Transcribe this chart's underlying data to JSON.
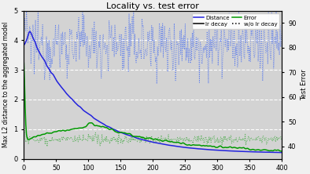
{
  "title": "Locality vs. test error",
  "ylabel_left": "Max L2 distance to the aggregated model",
  "ylabel_right": "Test Error",
  "xlabel": "",
  "xlim": [
    0,
    400
  ],
  "ylim_left": [
    0,
    5
  ],
  "ylim_right": [
    35,
    95
  ],
  "x_ticks": [
    0,
    50,
    100,
    150,
    200,
    250,
    300,
    350,
    400
  ],
  "y_ticks_left": [
    0,
    1,
    2,
    3,
    4,
    5
  ],
  "y_ticks_right": [
    40,
    50,
    60,
    70,
    80,
    90
  ],
  "bg_color": "#d3d3d3",
  "grid_color": "#ffffff",
  "blue_solid_color": "#2222dd",
  "blue_dotted_color": "#5577ee",
  "green_solid_color": "#009900",
  "green_dotted_color": "#44aa44",
  "n_points": 401
}
